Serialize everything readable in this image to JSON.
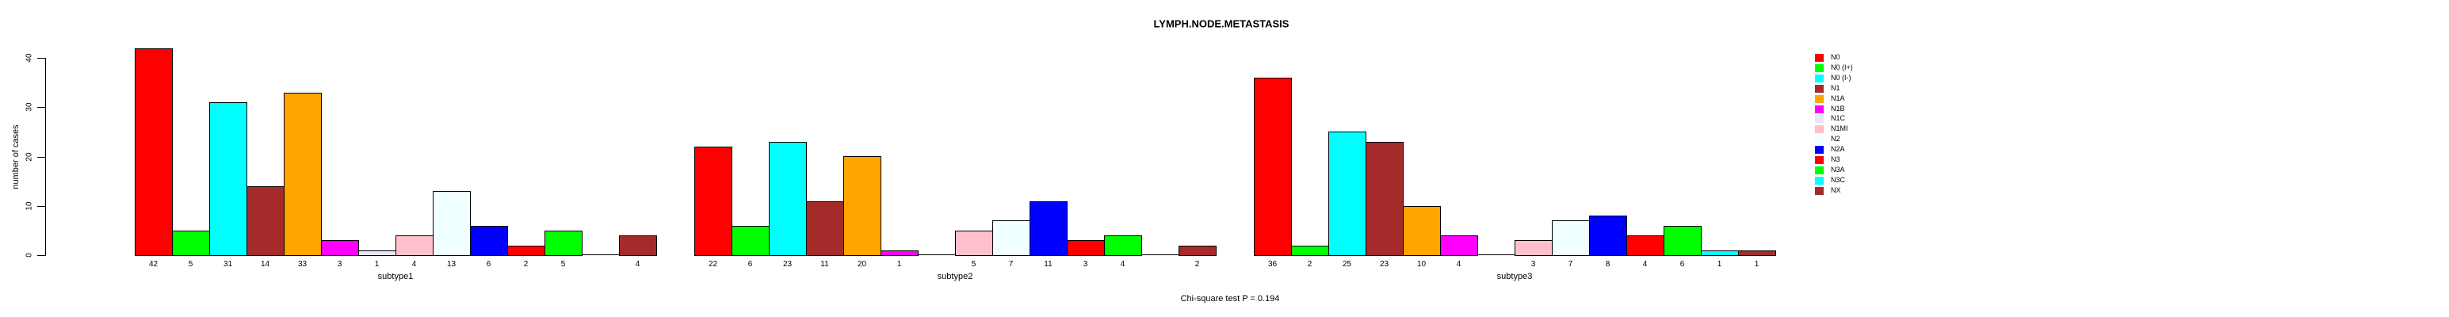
{
  "title": "LYMPH.NODE.METASTASIS",
  "footer": "Chi-square test P = 0.194",
  "chart_data": {
    "type": "bar",
    "title": "LYMPH.NODE.METASTASIS",
    "xlabel": "",
    "ylabel": "number of cases",
    "ylim": [
      0,
      40
    ],
    "yticks": [
      0,
      10,
      20,
      30,
      40
    ],
    "grid": false,
    "legend_position": "right",
    "categories": [
      "N0",
      "N0 (I+)",
      "N0 (I-)",
      "N1",
      "N1A",
      "N1B",
      "N1C",
      "N1MI",
      "N2",
      "N2A",
      "N3",
      "N3A",
      "N3C",
      "NX"
    ],
    "category_colors": [
      "#FF0000",
      "#00FF00",
      "#00FFFF",
      "#A52A2A",
      "#FFA500",
      "#FF00FF",
      "#E6E6FA",
      "#FFC0CB",
      "#F0FFFF",
      "#0000FF",
      "#FF0000",
      "#00FF00",
      "#00FFFF",
      "#A52A2A"
    ],
    "groups": [
      {
        "label": "subtype1",
        "values": [
          42,
          5,
          31,
          14,
          33,
          3,
          1,
          4,
          13,
          6,
          2,
          5,
          0,
          4
        ]
      },
      {
        "label": "subtype2",
        "values": [
          22,
          6,
          23,
          11,
          20,
          1,
          0,
          5,
          7,
          11,
          3,
          4,
          0,
          2
        ]
      },
      {
        "label": "subtype3",
        "values": [
          36,
          2,
          25,
          23,
          10,
          4,
          0,
          3,
          7,
          8,
          4,
          6,
          1,
          1
        ]
      }
    ],
    "annotation": "Chi-square test P = 0.194"
  }
}
